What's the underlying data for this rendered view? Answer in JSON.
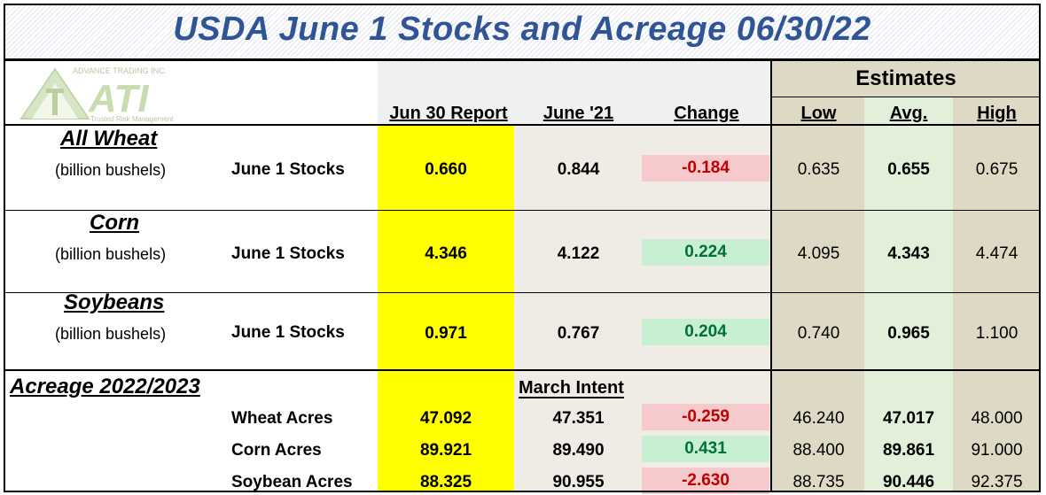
{
  "title": "USDA June 1 Stocks and Acreage 06/30/22",
  "logo": {
    "company": "ADVANCE TRADING INC.",
    "mark": "ATI",
    "tagline": "Trusted Risk Management"
  },
  "headers": {
    "report": "Jun 30 Report",
    "prior": "June '21",
    "change": "Change",
    "estimates": "Estimates",
    "low": "Low",
    "avg": "Avg.",
    "high": "High"
  },
  "stocks": [
    {
      "name": "All Wheat",
      "unit": "(billion bushels)",
      "label": "June 1 Stocks",
      "report": "0.660",
      "prior": "0.844",
      "change": "-0.184",
      "change_sign": "neg",
      "low": "0.635",
      "avg": "0.655",
      "high": "0.675"
    },
    {
      "name": "Corn",
      "unit": "(billion bushels)",
      "label": "June 1 Stocks",
      "report": "4.346",
      "prior": "4.122",
      "change": "0.224",
      "change_sign": "pos",
      "low": "4.095",
      "avg": "4.343",
      "high": "4.474"
    },
    {
      "name": "Soybeans",
      "unit": "(billion bushels)",
      "label": "June 1 Stocks",
      "report": "0.971",
      "prior": "0.767",
      "change": "0.204",
      "change_sign": "pos",
      "low": "0.740",
      "avg": "0.965",
      "high": "1.100"
    }
  ],
  "acreage": {
    "title": "Acreage 2022/2023",
    "prior_header": "March Intent",
    "rows": [
      {
        "label": "Wheat Acres",
        "report": "47.092",
        "prior": "47.351",
        "change": "-0.259",
        "change_sign": "neg",
        "low": "46.240",
        "avg": "47.017",
        "high": "48.000"
      },
      {
        "label": "Corn Acres",
        "report": "89.921",
        "prior": "89.490",
        "change": "0.431",
        "change_sign": "pos",
        "low": "88.400",
        "avg": "89.861",
        "high": "91.000"
      },
      {
        "label": "Soybean Acres",
        "report": "88.325",
        "prior": "90.955",
        "change": "-2.630",
        "change_sign": "neg",
        "low": "88.735",
        "avg": "90.446",
        "high": "92.375"
      }
    ]
  },
  "colors": {
    "title_text": "#2f5597",
    "report_column": "#ffff00",
    "estimates_band": "#ddd9c4",
    "avg_column": "#e2efd9",
    "negative_fill": "#f6c9cc",
    "negative_text": "#c00000",
    "positive_fill": "#c9efd3",
    "positive_text": "#00703c"
  }
}
